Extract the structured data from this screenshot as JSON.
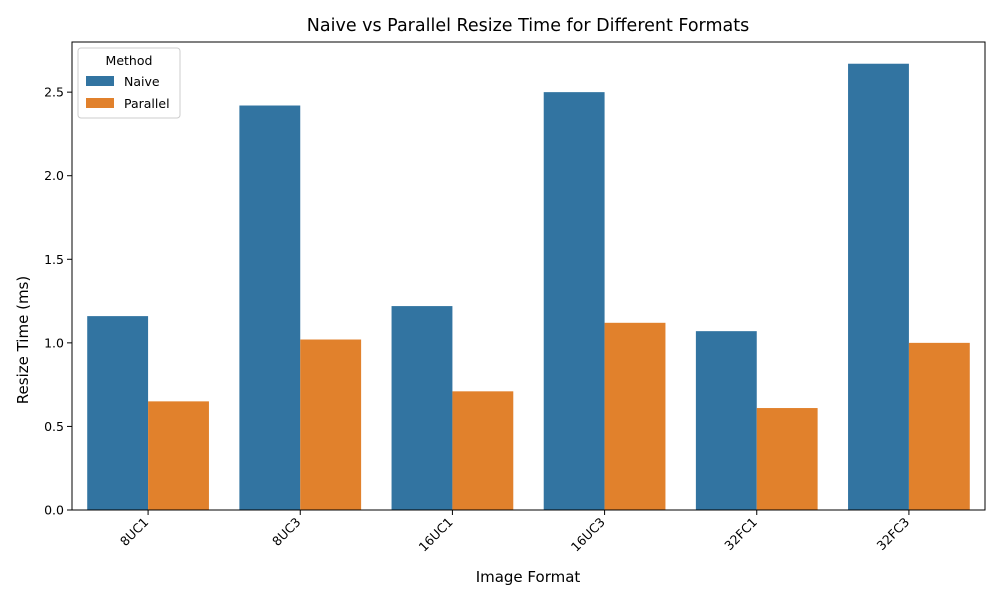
{
  "chart_data": {
    "type": "bar",
    "title": "Naive vs Parallel Resize Time for Different Formats",
    "xlabel": "Image Format",
    "ylabel": "Resize Time (ms)",
    "categories": [
      "8UC1",
      "8UC3",
      "16UC1",
      "16UC3",
      "32FC1",
      "32FC3"
    ],
    "series": [
      {
        "name": "Naive",
        "color": "#3274a1",
        "values": [
          1.16,
          2.42,
          1.22,
          2.5,
          1.07,
          2.67
        ]
      },
      {
        "name": "Parallel",
        "color": "#e1812c",
        "values": [
          0.65,
          1.02,
          0.71,
          1.12,
          0.61,
          1.0
        ]
      }
    ],
    "ylim": [
      0,
      2.8
    ],
    "yticks": [
      "0.0",
      "0.5",
      "1.0",
      "1.5",
      "2.0",
      "2.5"
    ],
    "legend": {
      "title": "Method",
      "position": "top-left"
    },
    "grid": false
  }
}
